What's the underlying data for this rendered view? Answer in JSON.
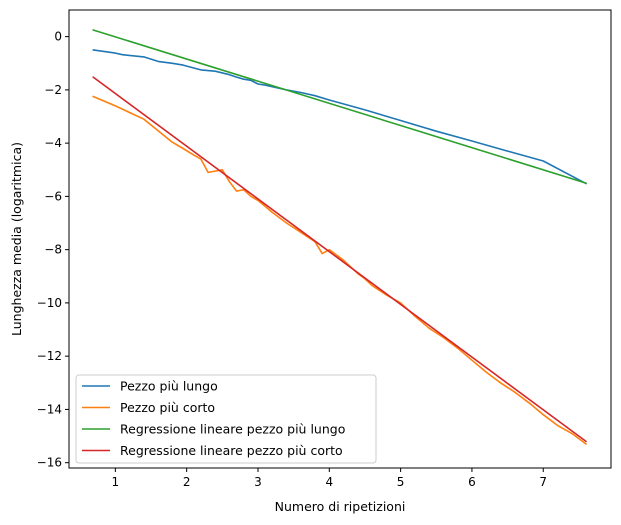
{
  "chart_data": {
    "type": "line",
    "title": "",
    "xlabel": "Numero di ripetizioni",
    "ylabel": "Lunghezza media (logaritmica)",
    "xlim": [
      0.35,
      7.95
    ],
    "ylim": [
      -16.2,
      1.0
    ],
    "xticks": [
      1,
      2,
      3,
      4,
      5,
      6,
      7
    ],
    "yticks": [
      0,
      -2,
      -4,
      -6,
      -8,
      -10,
      -12,
      -14,
      -16
    ],
    "xtick_labels": [
      "1",
      "2",
      "3",
      "4",
      "5",
      "6",
      "7"
    ],
    "ytick_labels": [
      "0",
      "−2",
      "−4",
      "−6",
      "−8",
      "−10",
      "−12",
      "−14",
      "−16"
    ],
    "grid": false,
    "legend_position": "lower-left",
    "series": [
      {
        "name": "Pezzo più lungo",
        "color": "#1f77b4",
        "points": [
          [
            0.69,
            -0.5
          ],
          [
            1.0,
            -0.62
          ],
          [
            1.1,
            -0.68
          ],
          [
            1.4,
            -0.76
          ],
          [
            1.6,
            -0.93
          ],
          [
            1.8,
            -1.0
          ],
          [
            1.95,
            -1.07
          ],
          [
            2.1,
            -1.18
          ],
          [
            2.2,
            -1.25
          ],
          [
            2.4,
            -1.3
          ],
          [
            2.6,
            -1.43
          ],
          [
            2.7,
            -1.52
          ],
          [
            2.8,
            -1.6
          ],
          [
            2.9,
            -1.64
          ],
          [
            3.0,
            -1.78
          ],
          [
            3.1,
            -1.82
          ],
          [
            3.2,
            -1.88
          ],
          [
            3.4,
            -2.0
          ],
          [
            3.6,
            -2.1
          ],
          [
            3.8,
            -2.22
          ],
          [
            4.0,
            -2.38
          ],
          [
            4.5,
            -2.75
          ],
          [
            5.0,
            -3.15
          ],
          [
            5.5,
            -3.55
          ],
          [
            6.0,
            -3.92
          ],
          [
            6.5,
            -4.3
          ],
          [
            7.0,
            -4.67
          ],
          [
            7.6,
            -5.52
          ]
        ]
      },
      {
        "name": "Pezzo più corto",
        "color": "#ff7f0e",
        "points": [
          [
            0.69,
            -2.25
          ],
          [
            1.0,
            -2.6
          ],
          [
            1.4,
            -3.1
          ],
          [
            1.79,
            -3.95
          ],
          [
            1.95,
            -4.2
          ],
          [
            2.1,
            -4.45
          ],
          [
            2.2,
            -4.6
          ],
          [
            2.3,
            -5.1
          ],
          [
            2.4,
            -5.05
          ],
          [
            2.5,
            -5.0
          ],
          [
            2.6,
            -5.45
          ],
          [
            2.7,
            -5.8
          ],
          [
            2.8,
            -5.75
          ],
          [
            2.9,
            -6.0
          ],
          [
            3.0,
            -6.15
          ],
          [
            3.2,
            -6.6
          ],
          [
            3.4,
            -7.0
          ],
          [
            3.6,
            -7.35
          ],
          [
            3.8,
            -7.7
          ],
          [
            3.9,
            -8.15
          ],
          [
            4.0,
            -8.0
          ],
          [
            4.2,
            -8.4
          ],
          [
            4.4,
            -8.9
          ],
          [
            4.5,
            -9.1
          ],
          [
            4.6,
            -9.35
          ],
          [
            4.8,
            -9.7
          ],
          [
            5.0,
            -10.0
          ],
          [
            5.2,
            -10.5
          ],
          [
            5.4,
            -10.95
          ],
          [
            5.6,
            -11.3
          ],
          [
            5.8,
            -11.7
          ],
          [
            6.0,
            -12.15
          ],
          [
            6.2,
            -12.6
          ],
          [
            6.4,
            -13.0
          ],
          [
            6.6,
            -13.35
          ],
          [
            6.8,
            -13.75
          ],
          [
            7.0,
            -14.2
          ],
          [
            7.2,
            -14.6
          ],
          [
            7.4,
            -14.9
          ],
          [
            7.6,
            -15.3
          ]
        ]
      },
      {
        "name": "Regressione lineare pezzo più lungo",
        "color": "#2ca02c",
        "points": [
          [
            0.69,
            0.25
          ],
          [
            7.6,
            -5.5
          ]
        ]
      },
      {
        "name": "Regressione lineare pezzo più corto",
        "color": "#d62728",
        "points": [
          [
            0.69,
            -1.52
          ],
          [
            7.6,
            -15.2
          ]
        ]
      }
    ]
  }
}
